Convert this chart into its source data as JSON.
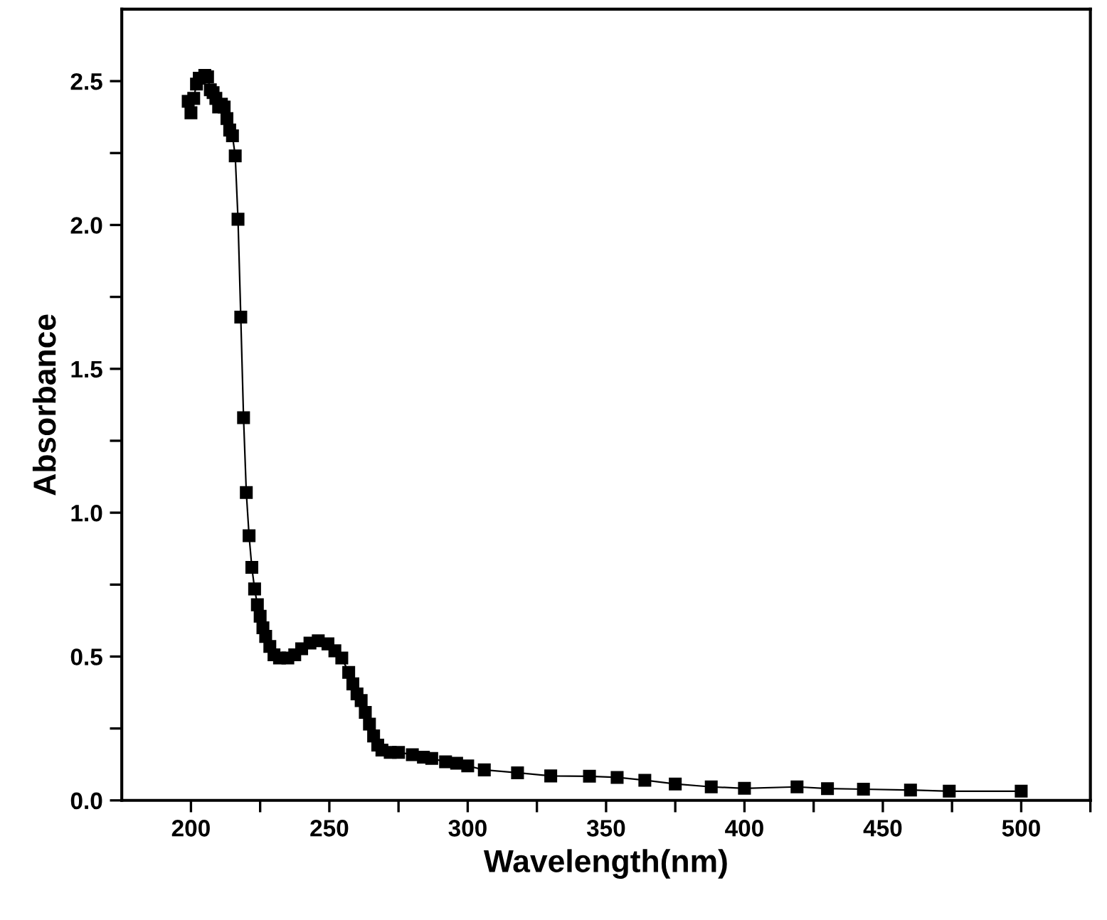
{
  "chart_data": {
    "type": "line",
    "xlabel": "Wavelength(nm)",
    "ylabel": "Absorbance",
    "marker": "square",
    "line_style": "solid",
    "xlim": [
      175,
      525
    ],
    "ylim": [
      0,
      2.75
    ],
    "xticks": [
      200,
      {
        "value": 225,
        "label": null
      },
      250,
      {
        "value": 275,
        "label": null
      },
      300,
      {
        "value": 325,
        "label": null
      },
      350,
      {
        "value": 375,
        "label": null
      },
      400,
      {
        "value": 425,
        "label": null
      },
      450,
      {
        "value": 475,
        "label": null
      },
      500,
      {
        "value": 525,
        "label": null
      }
    ],
    "yticks": [
      {
        "value": 0,
        "label": "0.0"
      },
      {
        "value": 0.25,
        "label": null
      },
      {
        "value": 0.5,
        "label": "0.5"
      },
      {
        "value": 0.75,
        "label": null
      },
      {
        "value": 1,
        "label": "1.0"
      },
      {
        "value": 1.25,
        "label": null
      },
      {
        "value": 1.5,
        "label": "1.5"
      },
      {
        "value": 1.75,
        "label": null
      },
      {
        "value": 2,
        "label": "2.0"
      },
      {
        "value": 2.25,
        "label": null
      },
      {
        "value": 2.5,
        "label": "2.5"
      }
    ],
    "series": [
      {
        "color": "#000000",
        "x": [
          199,
          200,
          201,
          202,
          203,
          205,
          206,
          207,
          208,
          209,
          210,
          211,
          212,
          213,
          214,
          215,
          216,
          217,
          218,
          219,
          220,
          221,
          222,
          223,
          224,
          225,
          226,
          227,
          228.5,
          230,
          232,
          235,
          237.5,
          240,
          243,
          246,
          249.5,
          252,
          254.5,
          257,
          258.5,
          260,
          261.5,
          263,
          264.5,
          266,
          267.5,
          269,
          272,
          275,
          280,
          284,
          287,
          292,
          296,
          300,
          306,
          318,
          330,
          344,
          354,
          364,
          375,
          388,
          400,
          419,
          430,
          443,
          460,
          474,
          500
        ],
        "values": [
          2.43,
          2.39,
          2.44,
          2.49,
          2.51,
          2.52,
          2.515,
          2.47,
          2.46,
          2.44,
          2.41,
          2.42,
          2.41,
          2.37,
          2.33,
          2.31,
          2.24,
          2.02,
          1.68,
          1.33,
          1.07,
          0.92,
          0.81,
          0.735,
          0.68,
          0.64,
          0.6,
          0.57,
          0.535,
          0.506,
          0.495,
          0.495,
          0.506,
          0.527,
          0.547,
          0.555,
          0.544,
          0.52,
          0.495,
          0.445,
          0.405,
          0.37,
          0.347,
          0.306,
          0.265,
          0.224,
          0.192,
          0.175,
          0.167,
          0.167,
          0.159,
          0.15,
          0.146,
          0.134,
          0.129,
          0.12,
          0.106,
          0.096,
          0.085,
          0.084,
          0.08,
          0.07,
          0.057,
          0.047,
          0.042,
          0.047,
          0.041,
          0.039,
          0.036,
          0.032,
          0.032
        ]
      }
    ]
  }
}
